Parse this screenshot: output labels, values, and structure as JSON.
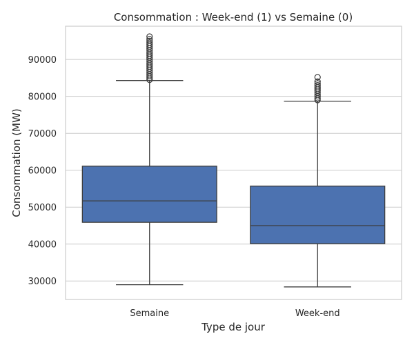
{
  "chart_data": {
    "type": "boxplot",
    "title": "Consommation : Week-end (1) vs Semaine (0)",
    "xlabel": "Type de jour",
    "ylabel": "Consommation (MW)",
    "categories": [
      "Semaine",
      "Week-end"
    ],
    "ylim": [
      25000,
      99000
    ],
    "yticks": [
      30000,
      40000,
      50000,
      60000,
      70000,
      80000,
      90000
    ],
    "grid": true,
    "box_color": "#4c72b0",
    "boxes": [
      {
        "category": "Semaine",
        "whisker_low": 29000,
        "q1": 45900,
        "median": 51700,
        "q3": 61100,
        "whisker_high": 84300,
        "outliers": [
          84500,
          85000,
          85500,
          86000,
          86500,
          87000,
          87500,
          88000,
          88500,
          89000,
          89500,
          90000,
          90500,
          91000,
          91500,
          92000,
          92500,
          93000,
          93500,
          94000,
          94500,
          95000,
          95500,
          96200
        ]
      },
      {
        "category": "Week-end",
        "whisker_low": 28400,
        "q1": 40100,
        "median": 45000,
        "q3": 55700,
        "whisker_high": 78700,
        "outliers": [
          79000,
          79500,
          80000,
          80500,
          81000,
          81500,
          82000,
          82500,
          83000,
          83500,
          84000,
          85200
        ]
      }
    ]
  }
}
